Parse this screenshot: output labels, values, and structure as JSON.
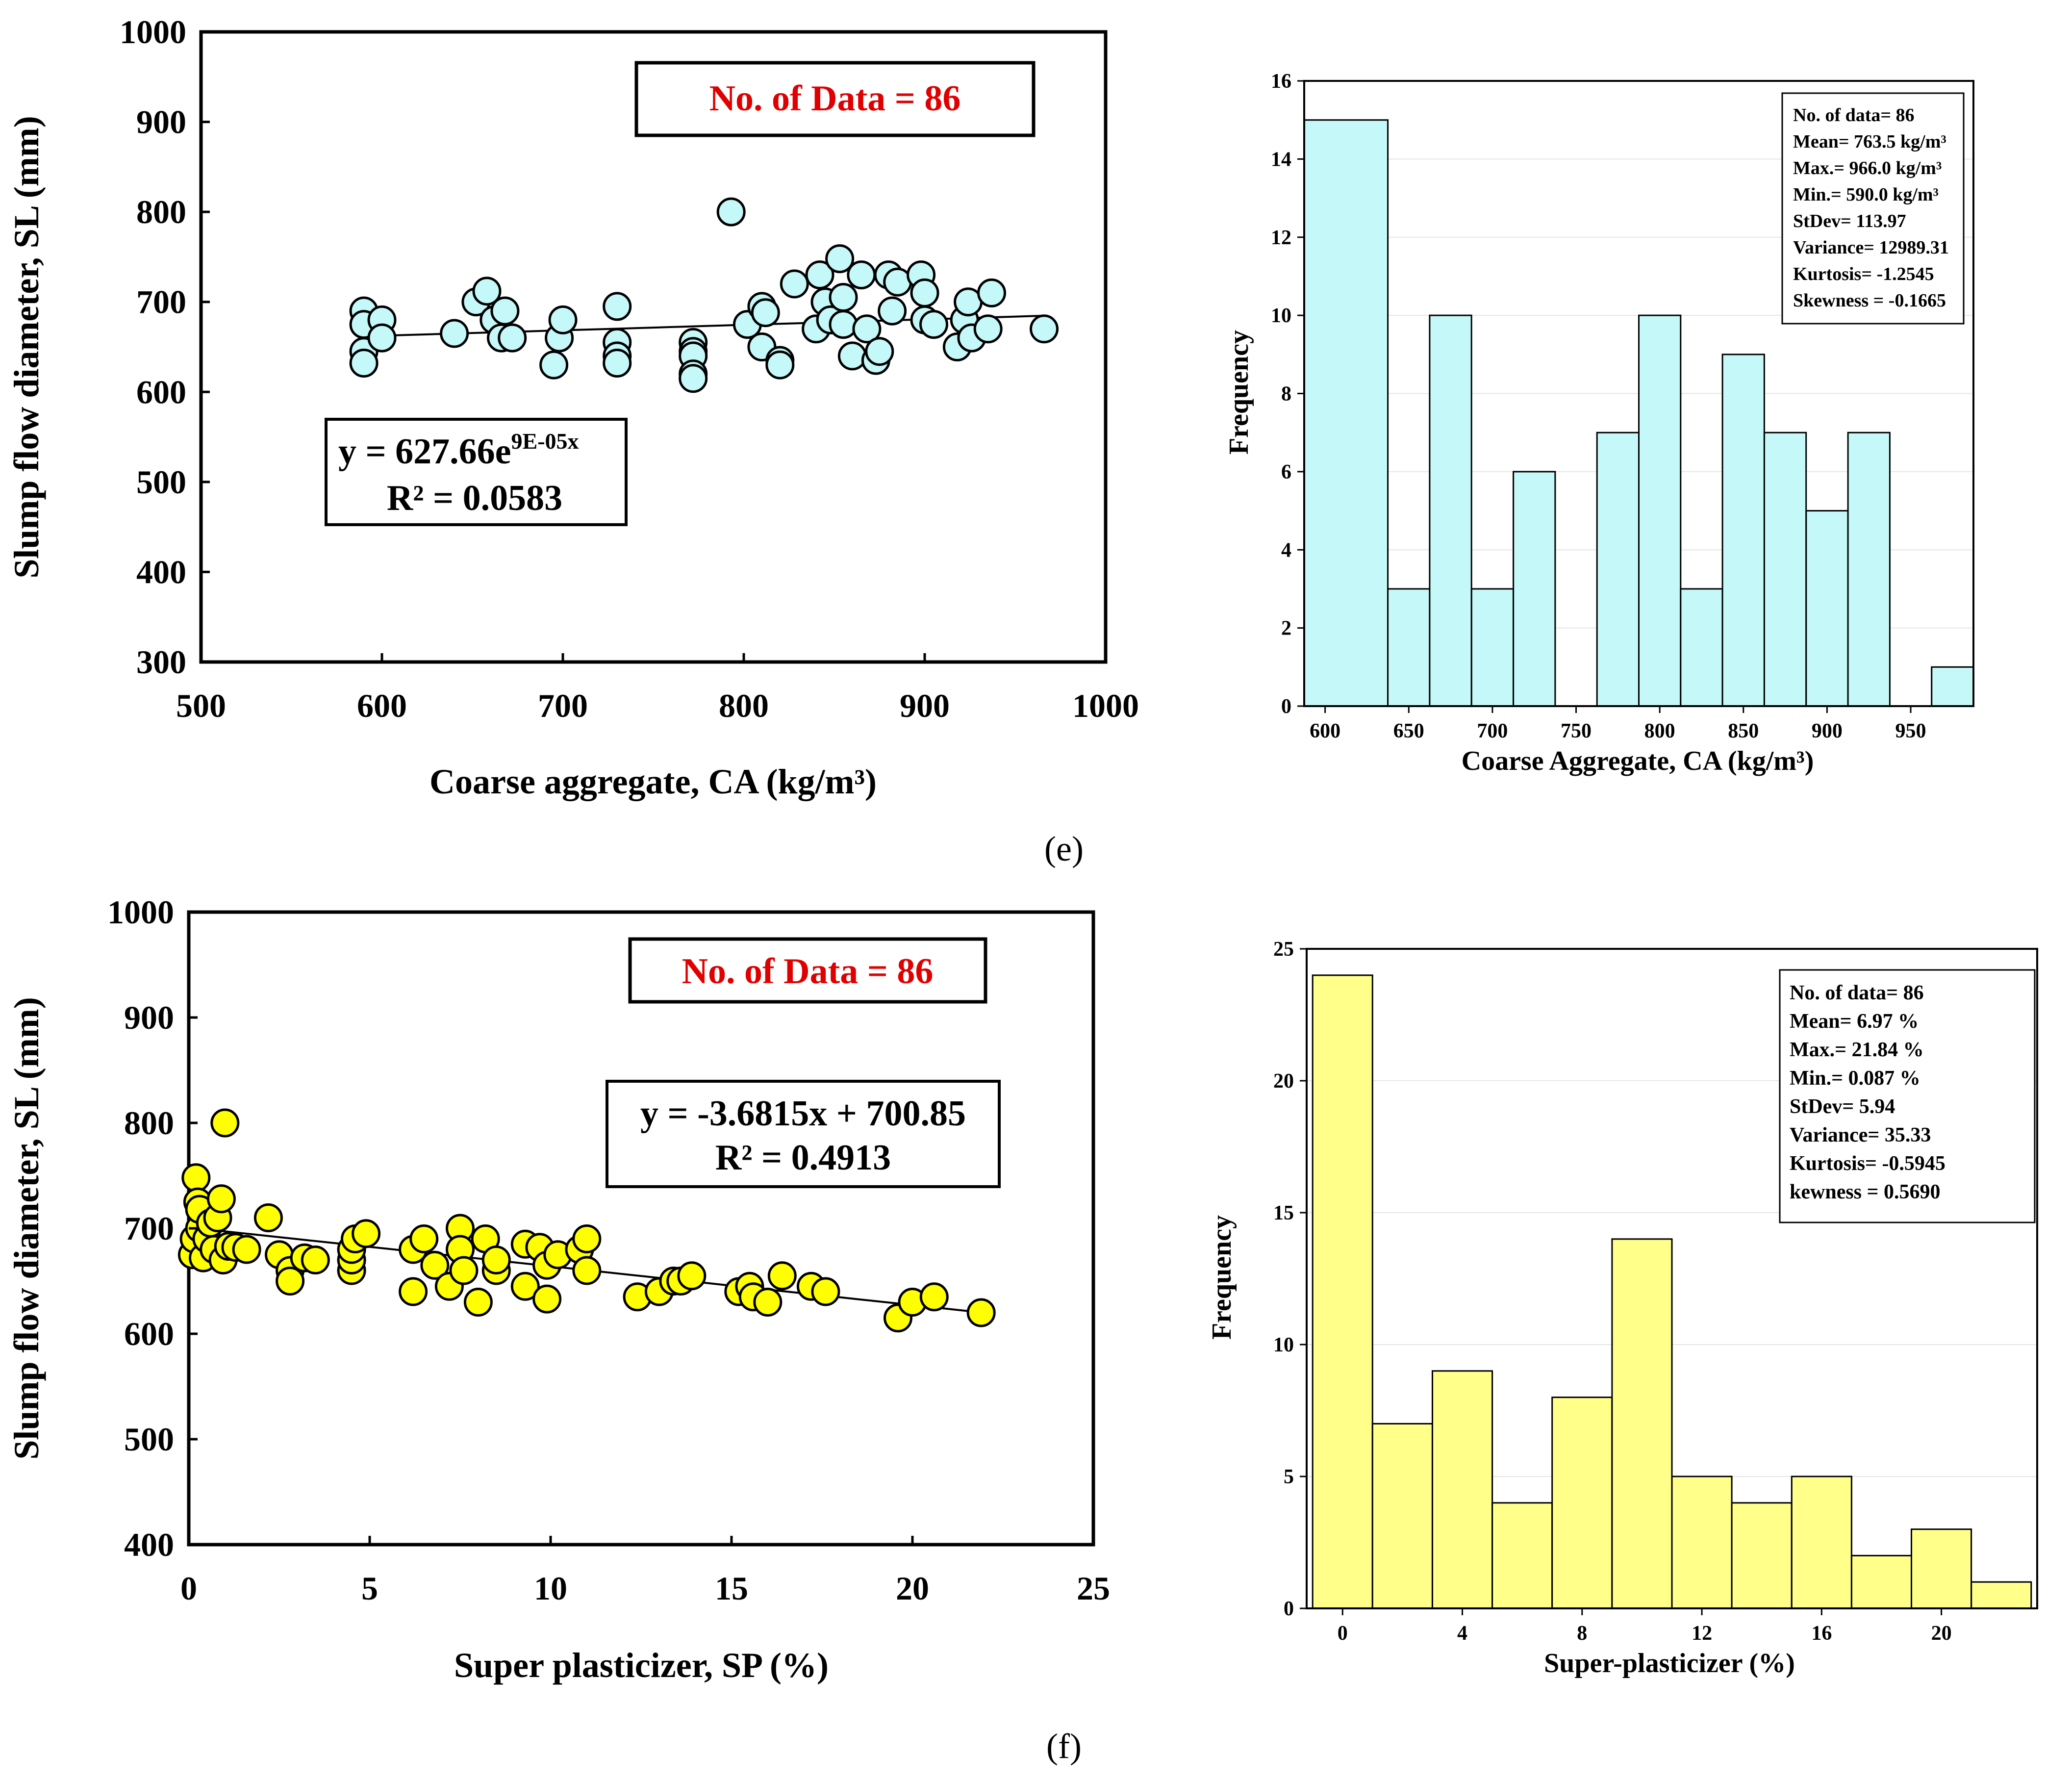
{
  "colors": {
    "cyan_fill": "#c5f8f8",
    "yellow_fill": "#ffff00",
    "hist_yellow": "#ffff8a",
    "red_text": "#e00000",
    "black": "#000000"
  },
  "panel_labels": {
    "e": "(e)",
    "f": "(f)"
  },
  "chart_data": [
    {
      "id": "scatter-e",
      "type": "scatter",
      "xlabel": "Coarse aggregate, CA (kg/m³)",
      "ylabel": "Slump flow diameter, SL (mm)",
      "xlim": [
        500,
        1000
      ],
      "ylim": [
        300,
        1000
      ],
      "xticks": [
        500,
        600,
        700,
        800,
        900,
        1000
      ],
      "yticks": [
        300,
        400,
        500,
        600,
        700,
        800,
        900,
        1000
      ],
      "data_count_label": "No. of Data = 86",
      "equation": {
        "main": "y = 627.66e",
        "sup": "9E-05x",
        "r2": "R² = 0.0583"
      },
      "trendline": {
        "type": "exponential",
        "a": 627.66,
        "b": 9e-05,
        "x_range": [
          590,
          966
        ]
      },
      "points": [
        [
          590,
          690
        ],
        [
          590,
          675
        ],
        [
          590,
          645
        ],
        [
          590,
          632
        ],
        [
          600,
          680
        ],
        [
          600,
          660
        ],
        [
          640,
          665
        ],
        [
          652,
          700
        ],
        [
          658,
          712
        ],
        [
          662,
          680
        ],
        [
          666,
          660
        ],
        [
          668,
          690
        ],
        [
          672,
          660
        ],
        [
          695,
          630
        ],
        [
          698,
          660
        ],
        [
          700,
          680
        ],
        [
          730,
          695
        ],
        [
          730,
          655
        ],
        [
          730,
          640
        ],
        [
          730,
          632
        ],
        [
          772,
          655
        ],
        [
          772,
          645
        ],
        [
          772,
          640
        ],
        [
          772,
          620
        ],
        [
          772,
          615
        ],
        [
          793,
          800
        ],
        [
          802,
          675
        ],
        [
          810,
          695
        ],
        [
          812,
          688
        ],
        [
          810,
          650
        ],
        [
          820,
          635
        ],
        [
          820,
          630
        ],
        [
          828,
          720
        ],
        [
          840,
          670
        ],
        [
          842,
          730
        ],
        [
          845,
          700
        ],
        [
          848,
          680
        ],
        [
          853,
          748
        ],
        [
          855,
          705
        ],
        [
          855,
          675
        ],
        [
          860,
          640
        ],
        [
          865,
          730
        ],
        [
          868,
          670
        ],
        [
          873,
          635
        ],
        [
          875,
          645
        ],
        [
          880,
          730
        ],
        [
          882,
          690
        ],
        [
          885,
          722
        ],
        [
          898,
          730
        ],
        [
          900,
          710
        ],
        [
          900,
          680
        ],
        [
          905,
          675
        ],
        [
          918,
          650
        ],
        [
          922,
          680
        ],
        [
          924,
          700
        ],
        [
          926,
          660
        ],
        [
          935,
          670
        ],
        [
          937,
          710
        ],
        [
          966,
          670
        ]
      ]
    },
    {
      "id": "hist-e",
      "type": "bar",
      "xlabel": "Coarse Aggregate, CA (kg/m³)",
      "ylabel": "Frequency",
      "bin_edges": [
        587.5,
        637.5,
        662.5,
        687.5,
        712.5,
        737.5,
        762.5,
        787.5,
        812.5,
        837.5,
        862.5,
        887.5,
        912.5,
        937.5,
        962.5,
        987.5
      ],
      "counts": [
        15,
        3,
        10,
        3,
        6,
        0,
        7,
        10,
        3,
        9,
        7,
        5,
        7,
        0,
        1
      ],
      "xlim": [
        587.5,
        987.5
      ],
      "ylim": [
        0,
        16
      ],
      "xticks": [
        600,
        650,
        700,
        750,
        800,
        850,
        900,
        950
      ],
      "yticks": [
        0,
        2,
        4,
        6,
        8,
        10,
        12,
        14,
        16
      ],
      "stats": [
        "No. of data= 86",
        "Mean= 763.5 kg/m³",
        "Max.= 966.0 kg/m³",
        "Min.= 590.0 kg/m³",
        "StDev= 113.97",
        "Variance= 12989.31",
        "Kurtosis= -1.2545",
        "Skewness = -0.1665"
      ]
    },
    {
      "id": "scatter-f",
      "type": "scatter",
      "xlabel": "Super plasticizer, SP (%)",
      "ylabel": "Slump flow diameter, SL (mm)",
      "xlim": [
        0,
        25
      ],
      "ylim": [
        400,
        1000
      ],
      "xticks": [
        0,
        5,
        10,
        15,
        20,
        25
      ],
      "yticks": [
        400,
        500,
        600,
        700,
        800,
        900,
        1000
      ],
      "data_count_label": "No. of Data = 86",
      "equation": {
        "main": "y = -3.6815x + 700.85",
        "sup": "",
        "r2": "R² = 0.4913"
      },
      "trendline": {
        "type": "linear",
        "m": -3.6815,
        "c": 700.85,
        "x_range": [
          0.087,
          21.84
        ]
      },
      "points": [
        [
          0.1,
          675
        ],
        [
          0.15,
          690
        ],
        [
          0.2,
          748
        ],
        [
          0.25,
          725
        ],
        [
          0.3,
          700
        ],
        [
          0.3,
          718
        ],
        [
          0.4,
          672
        ],
        [
          0.5,
          690
        ],
        [
          0.6,
          705
        ],
        [
          0.7,
          680
        ],
        [
          0.8,
          710
        ],
        [
          0.9,
          728
        ],
        [
          0.95,
          670
        ],
        [
          1.0,
          800
        ],
        [
          1.1,
          683
        ],
        [
          1.3,
          682
        ],
        [
          1.6,
          680
        ],
        [
          2.2,
          710
        ],
        [
          2.5,
          675
        ],
        [
          2.8,
          660
        ],
        [
          2.8,
          650
        ],
        [
          3.2,
          672
        ],
        [
          3.5,
          670
        ],
        [
          4.5,
          660
        ],
        [
          4.5,
          670
        ],
        [
          4.5,
          680
        ],
        [
          4.6,
          690
        ],
        [
          4.9,
          695
        ],
        [
          6.2,
          640
        ],
        [
          6.2,
          680
        ],
        [
          6.5,
          690
        ],
        [
          6.8,
          665
        ],
        [
          7.2,
          645
        ],
        [
          7.5,
          700
        ],
        [
          7.5,
          680
        ],
        [
          7.6,
          660
        ],
        [
          8.0,
          630
        ],
        [
          8.2,
          690
        ],
        [
          8.5,
          660
        ],
        [
          8.5,
          670
        ],
        [
          9.3,
          685
        ],
        [
          9.3,
          645
        ],
        [
          9.7,
          682
        ],
        [
          9.9,
          665
        ],
        [
          9.9,
          633
        ],
        [
          10.2,
          675
        ],
        [
          10.8,
          680
        ],
        [
          11.0,
          690
        ],
        [
          11.0,
          660
        ],
        [
          12.4,
          635
        ],
        [
          13.0,
          640
        ],
        [
          13.4,
          650
        ],
        [
          13.6,
          650
        ],
        [
          13.9,
          655
        ],
        [
          15.2,
          640
        ],
        [
          15.5,
          645
        ],
        [
          15.6,
          635
        ],
        [
          16.0,
          630
        ],
        [
          16.4,
          655
        ],
        [
          17.2,
          645
        ],
        [
          17.6,
          640
        ],
        [
          19.6,
          615
        ],
        [
          20.0,
          630
        ],
        [
          20.6,
          635
        ],
        [
          21.9,
          620
        ]
      ]
    },
    {
      "id": "hist-f",
      "type": "bar",
      "xlabel": "Super-plasticizer (%)",
      "ylabel": "Frequency",
      "bin_edges": [
        -1.0,
        1.0,
        3.0,
        5.0,
        7.0,
        9.0,
        11.0,
        13.0,
        15.0,
        17.0,
        19.0,
        21.0,
        23.0
      ],
      "counts": [
        24,
        7,
        9,
        4,
        8,
        14,
        5,
        4,
        5,
        2,
        3,
        1
      ],
      "xlim": [
        -1.2,
        23.2
      ],
      "ylim": [
        0,
        25
      ],
      "xticks": [
        0,
        4,
        8,
        12,
        16,
        20
      ],
      "yticks": [
        0,
        5,
        10,
        15,
        20,
        25
      ],
      "stats": [
        "No. of data= 86",
        "Mean= 6.97 %",
        "Max.= 21.84 %",
        "Min.= 0.087 %",
        "StDev= 5.94",
        "Variance= 35.33",
        "Kurtosis= -0.5945",
        "kewness = 0.5690"
      ]
    }
  ]
}
